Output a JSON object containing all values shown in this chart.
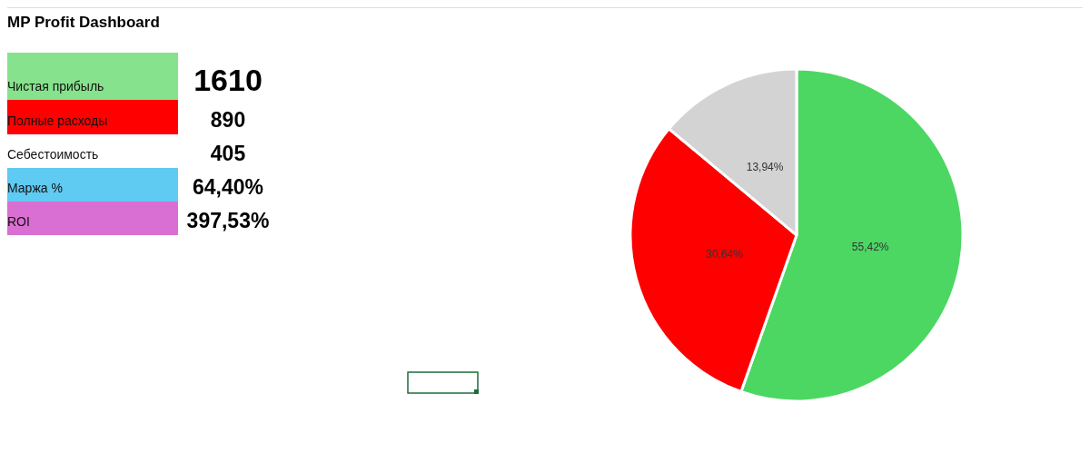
{
  "chart_data": [
    {
      "type": "other",
      "title": "MP Profit Dashboard",
      "categories": [
        "Чистая прибыль",
        "Полные расходы",
        "Себестоимость",
        "Маржа %",
        "ROI"
      ],
      "value_labels": [
        "1610",
        "890",
        "405",
        "64,40%",
        "397,53%"
      ],
      "colors": [
        "#86e28c",
        "#ff0000",
        "#ffffff",
        "#5fcaf2",
        "#d96fd2"
      ]
    },
    {
      "type": "pie",
      "categories": [
        null,
        null,
        null
      ],
      "values": [
        55.42,
        30.64,
        13.94
      ],
      "colors": [
        "#4cd763",
        "#ff0000",
        "#d3d3d3"
      ],
      "value_labels": [
        "55,42%",
        "30,64%",
        "13,94%"
      ]
    }
  ]
}
